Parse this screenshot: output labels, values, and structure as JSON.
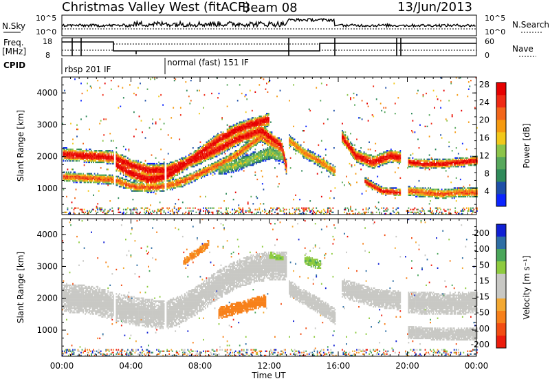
{
  "header": {
    "station": "Christmas Valley West (fitACF)",
    "beam": "Beam 08",
    "date": "13/Jun/2013"
  },
  "summary_panels": {
    "nsky_label": "N.Sky",
    "nsky_ticks": [
      "10^5",
      "10^0"
    ],
    "nsearch_label": "N.Search",
    "nsearch_ticks": [
      "10^5",
      "10^0"
    ],
    "freq_label": "Freq.",
    "freq_unit": "[MHz]",
    "freq_ticks": [
      "18",
      "8"
    ],
    "nave_label": "Nave",
    "nave_ticks": [
      "60",
      "0"
    ],
    "cpid_label": "CPID",
    "cpid_segments": [
      {
        "label": "rbsp 201 IF",
        "start_hour": 0.0
      },
      {
        "label": "normal (fast) 151 IF",
        "start_hour": 6.0
      }
    ]
  },
  "colors": {
    "power": [
      "#0b24ff",
      "#1e4fa8",
      "#2f8a5a",
      "#57a85c",
      "#8cc44a",
      "#f2c81a",
      "#f59a10",
      "#f2661a",
      "#ef2a14",
      "#e60000"
    ],
    "velocity": [
      "#ec1c0c",
      "#f24d12",
      "#f7801a",
      "#f3a832",
      "#c8c8c4",
      "#c8c8c4",
      "#8ecb3f",
      "#4aa65a",
      "#2e6ea4",
      "#1020d4"
    ]
  },
  "chart_data": [
    {
      "type": "heatmap",
      "name": "power",
      "ylabel": "Slant Range [km]",
      "colorbar_label": "Power [dB]",
      "colorbar_ticks": [
        "4",
        "8",
        "12",
        "16",
        "20",
        "24",
        "28"
      ],
      "ylim": [
        180,
        4500
      ],
      "yticks": [
        "1000",
        "2000",
        "3000",
        "4000"
      ],
      "xlim": [
        0,
        24
      ],
      "bands": [
        {
          "hours": [
            0,
            1.5,
            3,
            4,
            5,
            6,
            7,
            8,
            9,
            10,
            11.5,
            12.7,
            13
          ],
          "range": [
            2050,
            2000,
            1950,
            1700,
            1550,
            1550,
            1750,
            1950,
            2200,
            2500,
            2800,
            2300,
            1600
          ],
          "width": 420,
          "peak": 27
        },
        {
          "hours": [
            0,
            1.5,
            3,
            4,
            5,
            6,
            7,
            8,
            9,
            10,
            11.5,
            12.7,
            13
          ],
          "range": [
            1350,
            1300,
            1250,
            1050,
            1000,
            1050,
            1200,
            1450,
            1700,
            2000,
            2600,
            2200,
            1500
          ],
          "width": 320,
          "peak": 22
        },
        {
          "hours": [
            3,
            4,
            5,
            6,
            7,
            8,
            9,
            10,
            11,
            12
          ],
          "range": [
            1750,
            1450,
            1250,
            1350,
            1700,
            2100,
            2500,
            2800,
            3000,
            3150
          ],
          "width": 420,
          "peak": 28
        },
        {
          "hours": [
            9,
            10,
            11,
            12,
            12.8
          ],
          "range": [
            1600,
            1700,
            1900,
            2100,
            2000
          ],
          "width": 420,
          "peak": 12
        },
        {
          "hours": [
            13.1,
            14,
            15,
            15.8
          ],
          "range": [
            2500,
            2100,
            1800,
            1500
          ],
          "width": 350,
          "peak": 20
        },
        {
          "hours": [
            16.2,
            17,
            18,
            19,
            19.6
          ],
          "range": [
            2600,
            2000,
            1800,
            2000,
            1950
          ],
          "width": 420,
          "peak": 27
        },
        {
          "hours": [
            17.5,
            18.5,
            19.6
          ],
          "range": [
            1200,
            900,
            850
          ],
          "width": 260,
          "peak": 26
        },
        {
          "hours": [
            20,
            21,
            22,
            23,
            24
          ],
          "range": [
            1800,
            1750,
            1750,
            1800,
            1850
          ],
          "width": 300,
          "peak": 27
        },
        {
          "hours": [
            20,
            21,
            22,
            23,
            24
          ],
          "range": [
            900,
            850,
            800,
            850,
            850
          ],
          "width": 320,
          "peak": 22
        }
      ]
    },
    {
      "type": "heatmap",
      "name": "velocity",
      "ylabel": "Slant Range [km]",
      "colorbar_label": "Velocity [m s⁻¹]",
      "colorbar_ticks": [
        "200",
        "100",
        "50",
        "15",
        "-15",
        "-50",
        "-100",
        "-200"
      ],
      "ylim": [
        180,
        4500
      ],
      "yticks": [
        "1000",
        "2000",
        "3000",
        "4000"
      ],
      "xlim": [
        0,
        24
      ],
      "xlabel": "Time UT",
      "xticks": [
        "00:00",
        "04:00",
        "08:00",
        "12:00",
        "16:00",
        "20:00",
        "00:00"
      ],
      "bands": [
        {
          "hours": [
            0,
            2,
            3,
            5,
            6,
            7,
            8,
            9,
            10,
            11,
            12,
            13
          ],
          "range": [
            2000,
            1900,
            1700,
            1500,
            1450,
            1650,
            2000,
            2400,
            2700,
            2900,
            3000,
            3000
          ],
          "width": 900,
          "v": 0
        },
        {
          "hours": [
            7,
            8,
            8.5
          ],
          "range": [
            3100,
            3500,
            3700
          ],
          "width": 250,
          "v": -60
        },
        {
          "hours": [
            9,
            10,
            11,
            11.8
          ],
          "range": [
            1500,
            1650,
            1800,
            1900
          ],
          "width": 380,
          "v": -70
        },
        {
          "hours": [
            12,
            12.8
          ],
          "range": [
            3300,
            3200
          ],
          "width": 300,
          "v": 40
        },
        {
          "hours": [
            13.1,
            14,
            15,
            15.8
          ],
          "range": [
            2300,
            2000,
            1700,
            1400
          ],
          "width": 500,
          "v": 0
        },
        {
          "hours": [
            14,
            15
          ],
          "range": [
            3200,
            3000
          ],
          "width": 300,
          "v": 40
        },
        {
          "hours": [
            16.2,
            18,
            19.6
          ],
          "range": [
            2300,
            2000,
            1900
          ],
          "width": 600,
          "v": 0
        },
        {
          "hours": [
            20,
            22,
            24
          ],
          "range": [
            1850,
            1800,
            1850
          ],
          "width": 700,
          "v": 0
        },
        {
          "hours": [
            20,
            22,
            24
          ],
          "range": [
            900,
            850,
            850
          ],
          "width": 400,
          "v": 0
        }
      ]
    }
  ]
}
